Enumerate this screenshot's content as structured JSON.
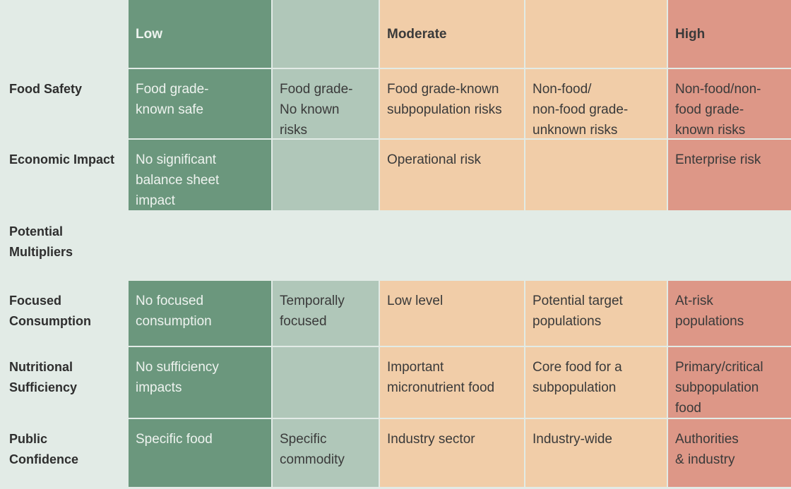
{
  "header": {
    "columns": [
      "Low",
      null,
      "Moderate",
      null,
      "High"
    ]
  },
  "rows": [
    {
      "label": "Food Safety",
      "cells": [
        "Food grade-\nknown safe",
        "Food grade-\nNo known\nrisks",
        "Food grade-known\nsubpopulation risks",
        "Non-food/\nnon-food grade-\nunknown risks",
        "Non-food/non-\nfood grade-\nknown risks"
      ]
    },
    {
      "label": "Economic Impact",
      "cells": [
        "No significant\nbalance sheet\nimpact",
        null,
        "Operational risk",
        null,
        "Enterprise risk"
      ]
    },
    {
      "label": "Potential\nMultipliers"
    },
    {
      "label": "Focused\nConsumption",
      "cells": [
        "No focused\nconsumption",
        "Temporally\nfocused",
        "Low level",
        "Potential target\npopulations",
        "At-risk\npopulations"
      ]
    },
    {
      "label": "Nutritional\nSufficiency",
      "cells": [
        "No sufficiency\nimpacts",
        null,
        "Important\nmicronutrient food",
        "Core food for a\nsubpopulation",
        "Primary/critical\nsubpopulation\nfood"
      ]
    },
    {
      "label": "Public\nConfidence",
      "cells": [
        "Specific food",
        "Specific\ncommodity",
        "Industry sector",
        "Industry-wide",
        "Authorities\n& industry"
      ]
    }
  ]
}
